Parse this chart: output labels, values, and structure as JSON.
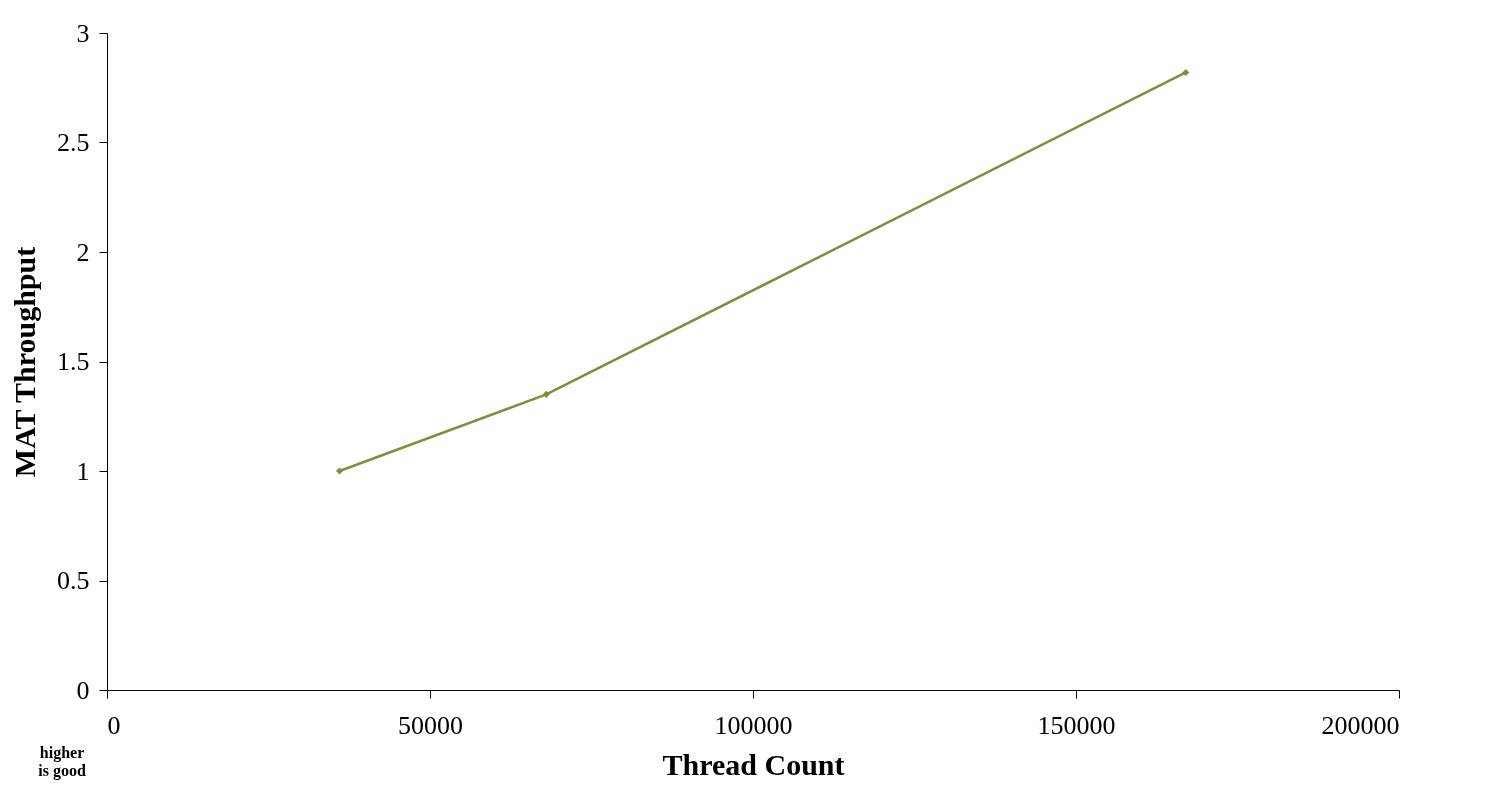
{
  "chart_data": {
    "type": "line",
    "xlabel": "Thread Count",
    "ylabel": "MAT Throughput",
    "x": [
      36000,
      68000,
      167000
    ],
    "series": [
      {
        "color": "#77933c",
        "values": [
          1.0,
          1.35,
          2.82
        ]
      }
    ],
    "xlim": [
      0,
      200000
    ],
    "xticks": [
      0,
      50000,
      100000,
      150000,
      200000
    ],
    "ylim": [
      0,
      3
    ],
    "yticks": [
      0,
      0.5,
      1,
      1.5,
      2,
      2.5,
      3
    ],
    "grid": false,
    "marker": "diamond",
    "line_style": "solid",
    "annotations": [
      "higher\nis good"
    ]
  }
}
